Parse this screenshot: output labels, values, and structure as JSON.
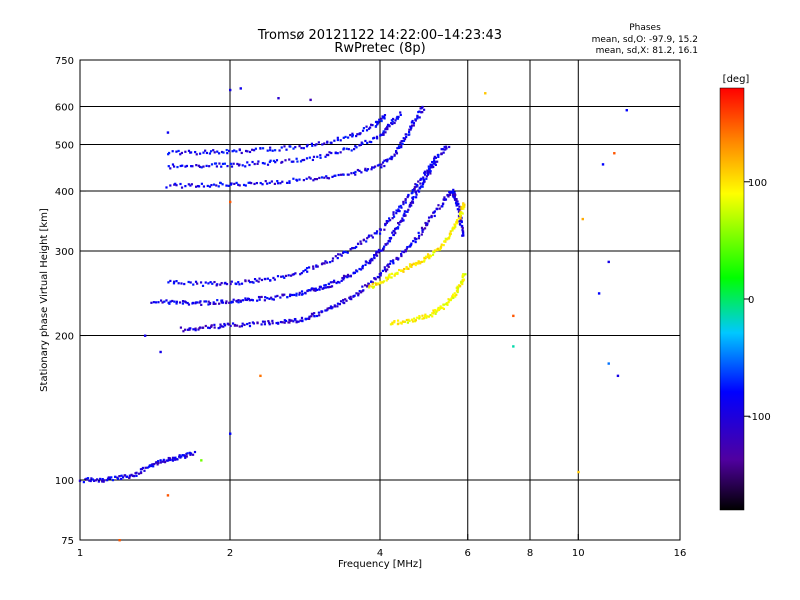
{
  "title_line1": "Tromsø 20121122 14:22:00–14:23:43",
  "title_line2": "RwPretec (8p)",
  "stats": {
    "heading": "Phases",
    "line_o": "mean, sd,O: -97.9, 15.2",
    "line_x": "mean, sd,X:  81.2, 16.1"
  },
  "colorbar": {
    "label": "[deg]",
    "range": [
      -180,
      180
    ],
    "ticks": [
      100,
      0,
      -100
    ],
    "tick_labels": [
      "100",
      "0",
      "-100"
    ]
  },
  "chart_data": {
    "type": "scatter",
    "title": "Tromsø 20121122 14:22:00–14:23:43",
    "subtitle": "RwPretec (8p)",
    "xlabel": "Frequency [MHz]",
    "ylabel": "Stationary phase Virtual Height [km]",
    "xscale": "log",
    "yscale": "log",
    "xlim": [
      1,
      16
    ],
    "ylim": [
      75,
      750
    ],
    "xticks": [
      1,
      2,
      4,
      6,
      8,
      10,
      16
    ],
    "xtick_labels": [
      "1",
      "2",
      "4",
      "6",
      "8",
      "10",
      "16"
    ],
    "x_gridlines": [
      2,
      4,
      6,
      8,
      10
    ],
    "yticks": [
      75,
      100,
      200,
      300,
      400,
      500,
      600,
      750
    ],
    "ytick_labels": [
      "75",
      "100",
      "200",
      "300",
      "400",
      "500",
      "600",
      "750"
    ],
    "y_gridlines": [
      100,
      200,
      300,
      400,
      500,
      600
    ],
    "grid": true,
    "color_variable": "phase [deg]",
    "traces": [
      {
        "mode": "O",
        "phase": -110,
        "points": [
          [
            1.4,
            236
          ],
          [
            1.6,
            234
          ],
          [
            1.8,
            234
          ],
          [
            2.0,
            236
          ],
          [
            2.2,
            238
          ],
          [
            2.5,
            240
          ],
          [
            2.8,
            246
          ],
          [
            3.0,
            250
          ],
          [
            3.2,
            256
          ],
          [
            3.5,
            268
          ],
          [
            3.8,
            285
          ],
          [
            4.0,
            300
          ],
          [
            4.2,
            320
          ],
          [
            4.4,
            345
          ],
          [
            4.6,
            375
          ],
          [
            4.8,
            405
          ],
          [
            5.0,
            435
          ],
          [
            5.2,
            460
          ]
        ]
      },
      {
        "mode": "O",
        "phase": -115,
        "points": [
          [
            1.6,
            206
          ],
          [
            1.8,
            208
          ],
          [
            2.0,
            210
          ],
          [
            2.3,
            212
          ],
          [
            2.6,
            214
          ],
          [
            2.8,
            216
          ],
          [
            3.0,
            222
          ],
          [
            3.3,
            232
          ],
          [
            3.6,
            245
          ],
          [
            3.9,
            262
          ],
          [
            4.2,
            282
          ],
          [
            4.5,
            300
          ],
          [
            4.8,
            325
          ],
          [
            5.1,
            355
          ],
          [
            5.4,
            385
          ],
          [
            5.6,
            400
          ],
          [
            5.7,
            380
          ],
          [
            5.8,
            350
          ],
          [
            5.85,
            320
          ]
        ]
      },
      {
        "mode": "O",
        "phase": -110,
        "points": [
          [
            1.5,
            258
          ],
          [
            1.8,
            256
          ],
          [
            2.1,
            258
          ],
          [
            2.4,
            262
          ],
          [
            2.8,
            272
          ],
          [
            3.2,
            288
          ],
          [
            3.6,
            308
          ],
          [
            4.0,
            330
          ],
          [
            4.3,
            360
          ],
          [
            4.6,
            395
          ],
          [
            4.9,
            430
          ],
          [
            5.2,
            470
          ],
          [
            5.5,
            500
          ]
        ]
      },
      {
        "mode": "O",
        "phase": -108,
        "points": [
          [
            1.5,
            410
          ],
          [
            1.8,
            412
          ],
          [
            2.1,
            414
          ],
          [
            2.5,
            418
          ],
          [
            3.0,
            425
          ],
          [
            3.5,
            435
          ],
          [
            4.0,
            450
          ],
          [
            4.3,
            480
          ],
          [
            4.5,
            520
          ],
          [
            4.7,
            560
          ],
          [
            4.9,
            600
          ]
        ]
      },
      {
        "mode": "O",
        "phase": -106,
        "points": [
          [
            1.5,
            450
          ],
          [
            1.8,
            452
          ],
          [
            2.1,
            454
          ],
          [
            2.5,
            460
          ],
          [
            3.0,
            470
          ],
          [
            3.5,
            490
          ],
          [
            4.0,
            520
          ],
          [
            4.2,
            550
          ],
          [
            4.4,
            580
          ]
        ]
      },
      {
        "mode": "O",
        "phase": -104,
        "points": [
          [
            1.5,
            480
          ],
          [
            1.8,
            482
          ],
          [
            2.1,
            484
          ],
          [
            2.5,
            490
          ],
          [
            3.0,
            500
          ],
          [
            3.5,
            520
          ],
          [
            3.9,
            550
          ],
          [
            4.1,
            575
          ]
        ]
      },
      {
        "mode": "O",
        "phase": -112,
        "points": [
          [
            1.0,
            100
          ],
          [
            1.1,
            100
          ],
          [
            1.2,
            101
          ],
          [
            1.3,
            103
          ],
          [
            1.4,
            108
          ],
          [
            1.5,
            110
          ],
          [
            1.6,
            112
          ],
          [
            1.7,
            114
          ]
        ]
      },
      {
        "mode": "X",
        "phase": 95,
        "points": [
          [
            3.8,
            252
          ],
          [
            4.1,
            262
          ],
          [
            4.4,
            272
          ],
          [
            4.7,
            282
          ],
          [
            5.0,
            292
          ],
          [
            5.3,
            305
          ],
          [
            5.6,
            330
          ],
          [
            5.8,
            355
          ],
          [
            5.9,
            380
          ]
        ]
      },
      {
        "mode": "X",
        "phase": 88,
        "points": [
          [
            4.2,
            212
          ],
          [
            4.6,
            215
          ],
          [
            5.0,
            220
          ],
          [
            5.3,
            228
          ],
          [
            5.6,
            240
          ],
          [
            5.8,
            255
          ],
          [
            5.9,
            270
          ]
        ]
      }
    ],
    "scattered_points": [
      {
        "x": 1.5,
        "y": 530,
        "phase": -105
      },
      {
        "x": 2.0,
        "y": 650,
        "phase": -110
      },
      {
        "x": 2.1,
        "y": 655,
        "phase": -108
      },
      {
        "x": 2.5,
        "y": 625,
        "phase": -120
      },
      {
        "x": 2.9,
        "y": 620,
        "phase": -130
      },
      {
        "x": 6.5,
        "y": 640,
        "phase": 110
      },
      {
        "x": 12.5,
        "y": 590,
        "phase": -100
      },
      {
        "x": 11.8,
        "y": 480,
        "phase": 150
      },
      {
        "x": 11.2,
        "y": 455,
        "phase": -100
      },
      {
        "x": 10.2,
        "y": 350,
        "phase": 120
      },
      {
        "x": 7.4,
        "y": 190,
        "phase": -20
      },
      {
        "x": 7.4,
        "y": 220,
        "phase": 150
      },
      {
        "x": 11.5,
        "y": 285,
        "phase": -110
      },
      {
        "x": 11.0,
        "y": 245,
        "phase": -100
      },
      {
        "x": 11.5,
        "y": 175,
        "phase": -60
      },
      {
        "x": 12.0,
        "y": 165,
        "phase": -110
      },
      {
        "x": 10.0,
        "y": 104,
        "phase": 110
      },
      {
        "x": 2.0,
        "y": 125,
        "phase": -100
      },
      {
        "x": 2.3,
        "y": 165,
        "phase": 140
      },
      {
        "x": 1.45,
        "y": 185,
        "phase": -110
      },
      {
        "x": 1.35,
        "y": 200,
        "phase": -110
      },
      {
        "x": 1.5,
        "y": 93,
        "phase": 150
      },
      {
        "x": 1.2,
        "y": 75,
        "phase": 150
      },
      {
        "x": 2.0,
        "y": 380,
        "phase": 150
      },
      {
        "x": 1.75,
        "y": 110,
        "phase": 40
      }
    ]
  }
}
